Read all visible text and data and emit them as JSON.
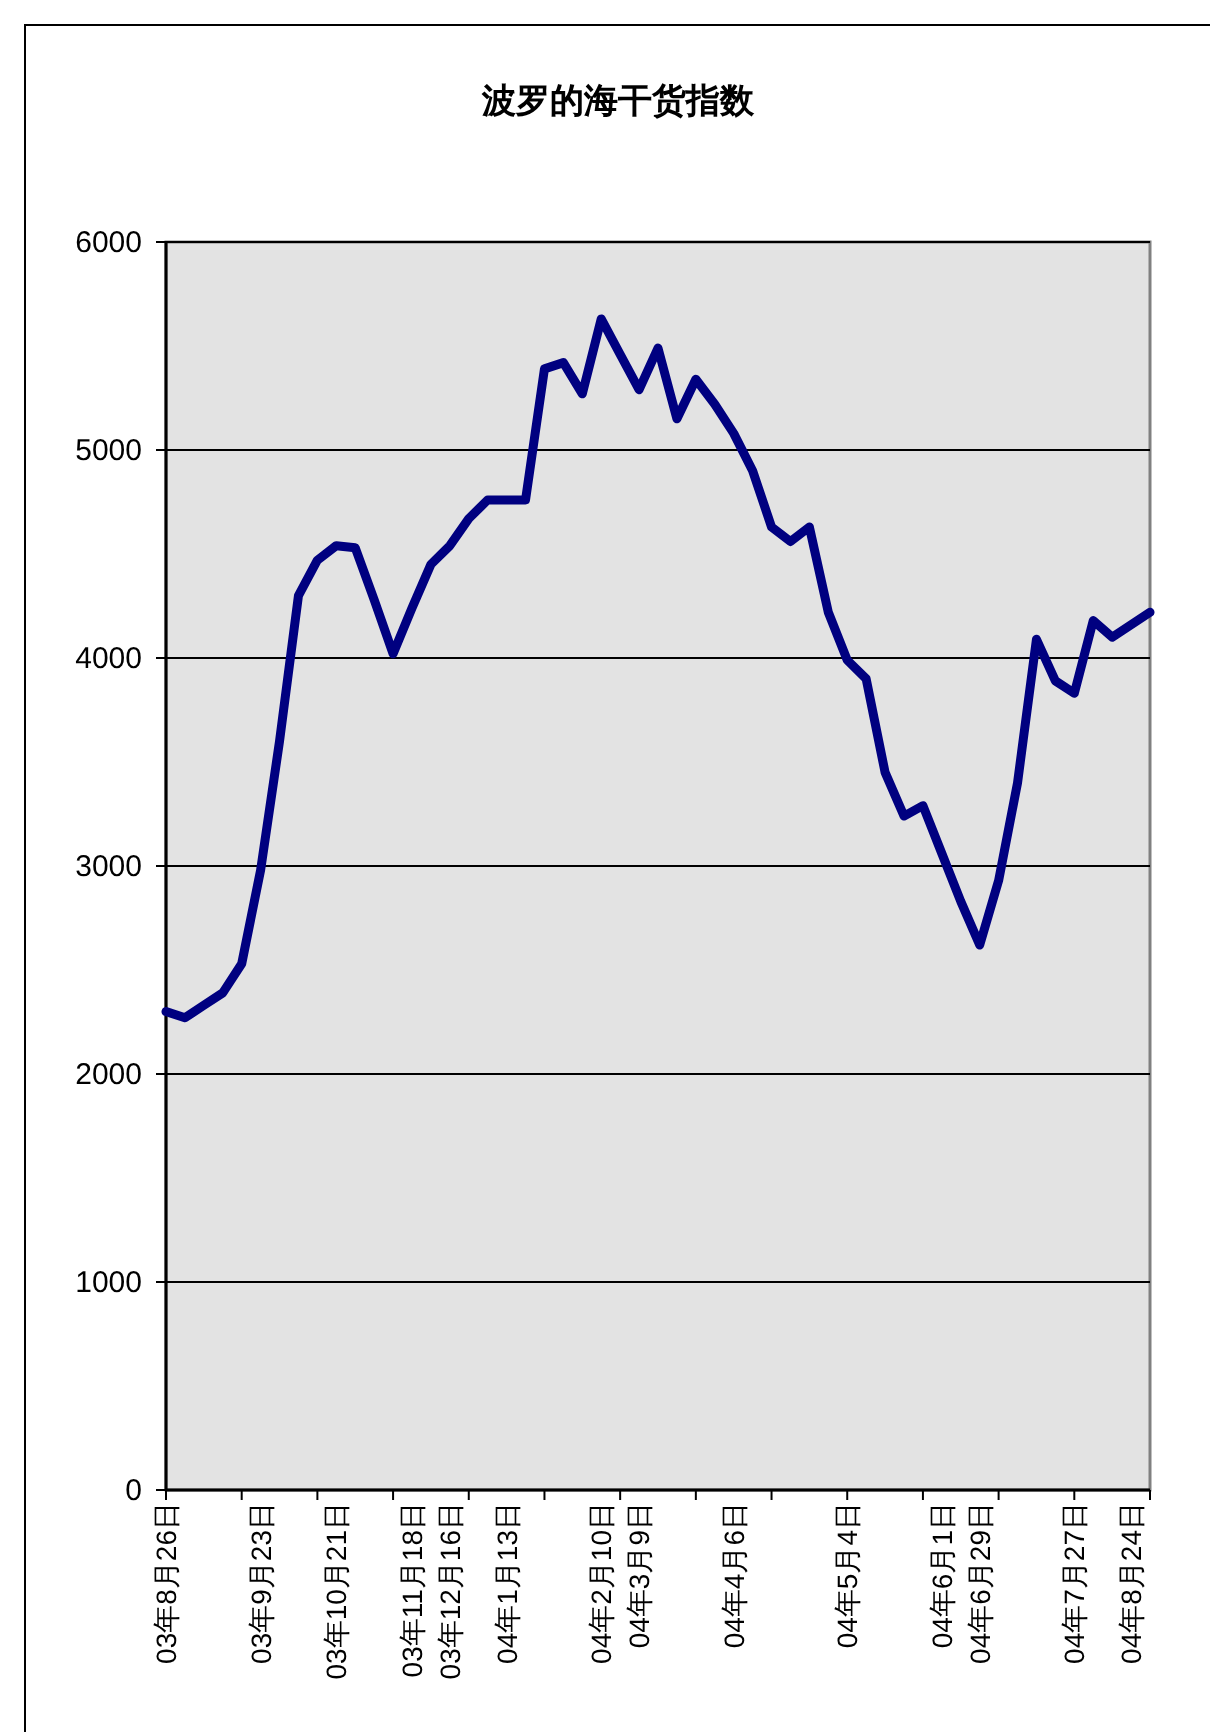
{
  "chart_data": {
    "type": "line",
    "title": "波罗的海干货指数",
    "categories": [
      "03年8月26日",
      null,
      null,
      null,
      null,
      "03年9月23日",
      null,
      null,
      null,
      "03年10月21日",
      null,
      null,
      null,
      "03年11月18日",
      null,
      "03年12月16日",
      null,
      null,
      "04年1月13日",
      null,
      null,
      null,
      null,
      "04年2月10日",
      null,
      "04年3月9日",
      null,
      null,
      null,
      null,
      "04年4月6日",
      null,
      null,
      null,
      null,
      null,
      "04年5月4日",
      null,
      null,
      null,
      null,
      "04年6月1日",
      null,
      "04年6月29日",
      null,
      null,
      null,
      null,
      "04年7月27日",
      null,
      null,
      "04年8月24日",
      null
    ],
    "values": [
      2300,
      2270,
      2330,
      2390,
      2530,
      2980,
      3600,
      4300,
      4470,
      4540,
      4530,
      4280,
      4020,
      4240,
      4450,
      4540,
      4670,
      4760,
      4760,
      4760,
      5390,
      5420,
      5270,
      5630,
      5460,
      5290,
      5490,
      5150,
      5340,
      5220,
      5080,
      4900,
      4630,
      4560,
      4630,
      4220,
      3990,
      3900,
      3450,
      3240,
      3290,
      3060,
      2830,
      2620,
      2930,
      3400,
      4090,
      3890,
      3830,
      4180,
      4100,
      4160,
      4220
    ],
    "color": "#000080",
    "ylim": [
      0,
      6000
    ],
    "yticks": [
      0,
      1000,
      2000,
      3000,
      4000,
      5000,
      6000
    ],
    "grid": "y"
  }
}
